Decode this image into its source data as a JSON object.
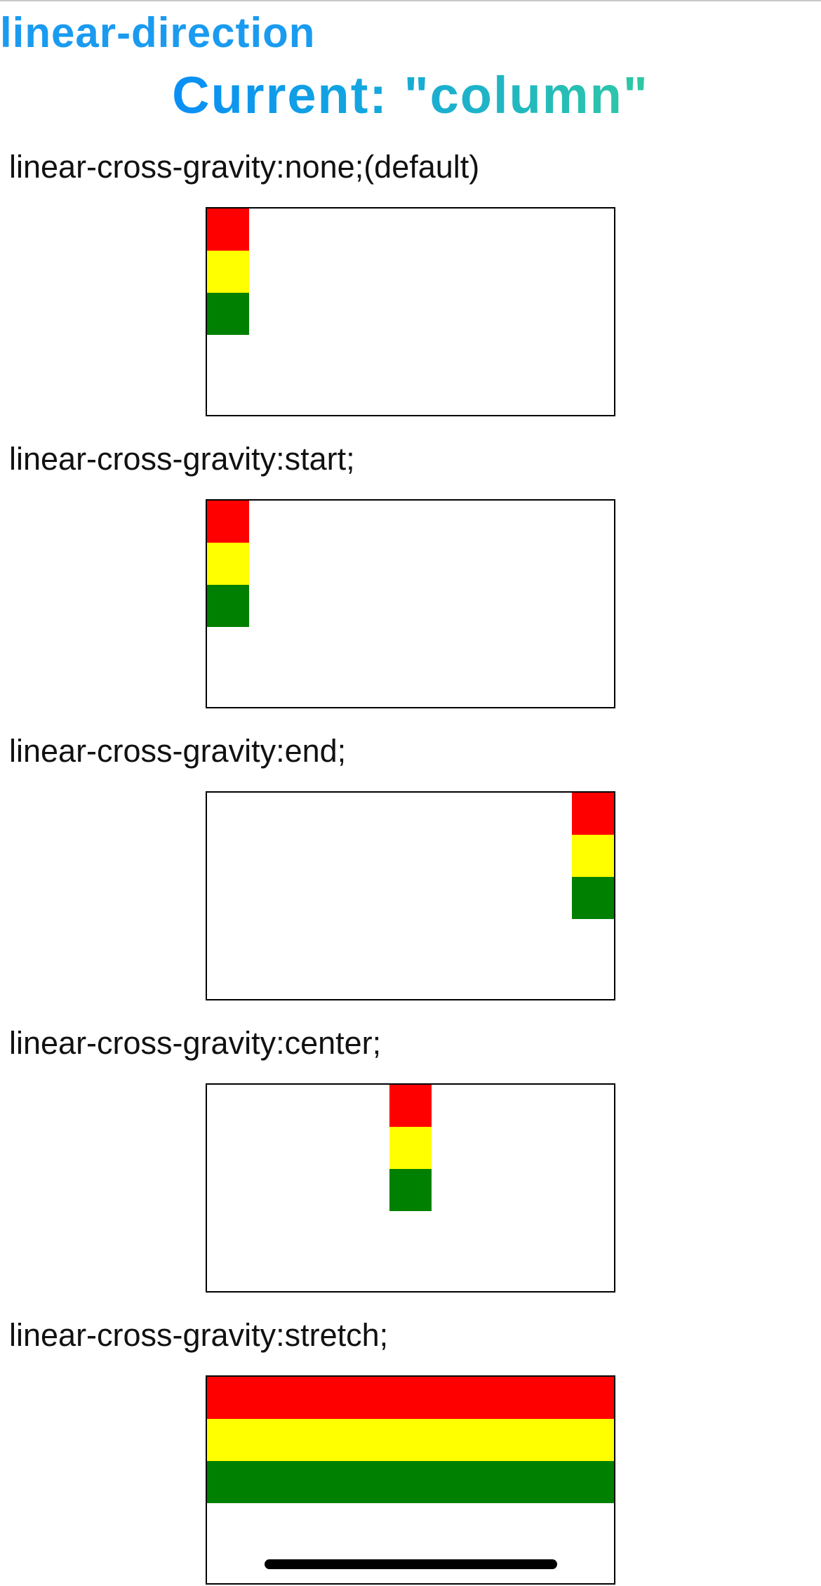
{
  "header": {
    "title": "linear-direction",
    "current": "Current: \"column\""
  },
  "colors": {
    "heading": "#1a9bf0",
    "item_1": "#ff0000",
    "item_2": "#ffff00",
    "item_3": "#008000",
    "box_border": "#000000"
  },
  "sections": [
    {
      "label": "linear-cross-gravity:none;(default)",
      "gravity": "start"
    },
    {
      "label": "linear-cross-gravity:start;",
      "gravity": "start"
    },
    {
      "label": "linear-cross-gravity:end;",
      "gravity": "end"
    },
    {
      "label": "linear-cross-gravity:center;",
      "gravity": "center"
    },
    {
      "label": "linear-cross-gravity:stretch;",
      "gravity": "stretch"
    }
  ]
}
